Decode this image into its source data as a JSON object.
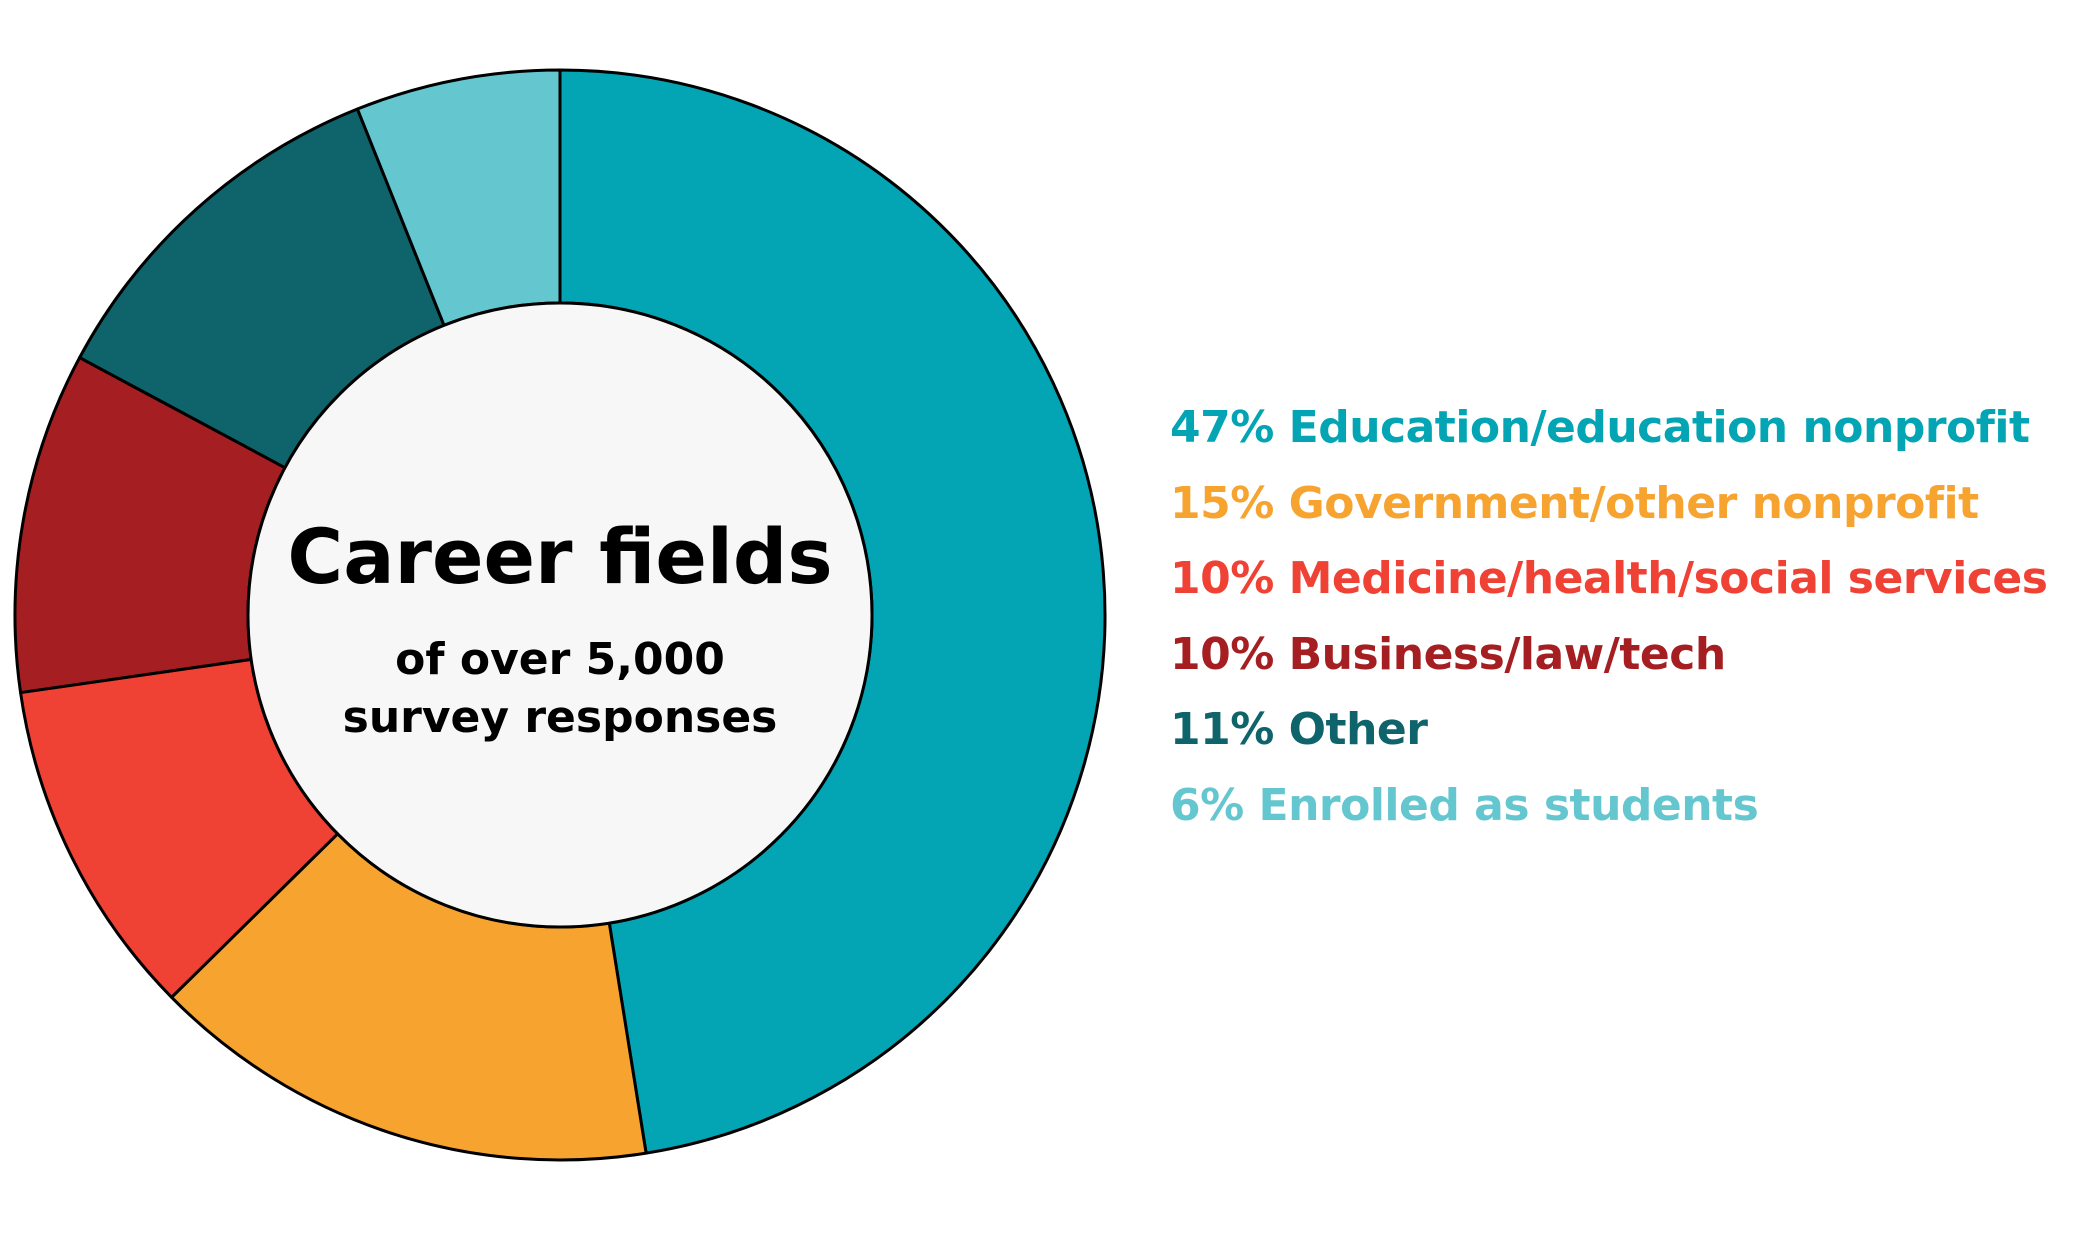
{
  "chart_data": {
    "type": "pie",
    "title": "Career fields",
    "subtitle_lines": [
      "of over 5,000",
      "survey responses"
    ],
    "categories": [
      "Education/education nonprofit",
      "Government/other nonprofit",
      "Medicine/health/social services",
      "Business/law/tech",
      "Other",
      "Enrolled as students"
    ],
    "values": [
      47,
      15,
      10,
      10,
      11,
      6
    ],
    "unit": "%",
    "colors": [
      "#03a4b3",
      "#f7a330",
      "#ef4134",
      "#a51f22",
      "#0f646c",
      "#64c6cf"
    ],
    "legend_labels": [
      "47% Education/education nonprofit",
      "15% Government/other nonprofit",
      "10% Medicine/health/social services",
      "10% Business/law/tech",
      "11% Other",
      "6% Enrolled as students"
    ],
    "legend_placement": "right",
    "donut": true,
    "center_fill": "#f7f7f7",
    "stroke_color": "#000000"
  }
}
